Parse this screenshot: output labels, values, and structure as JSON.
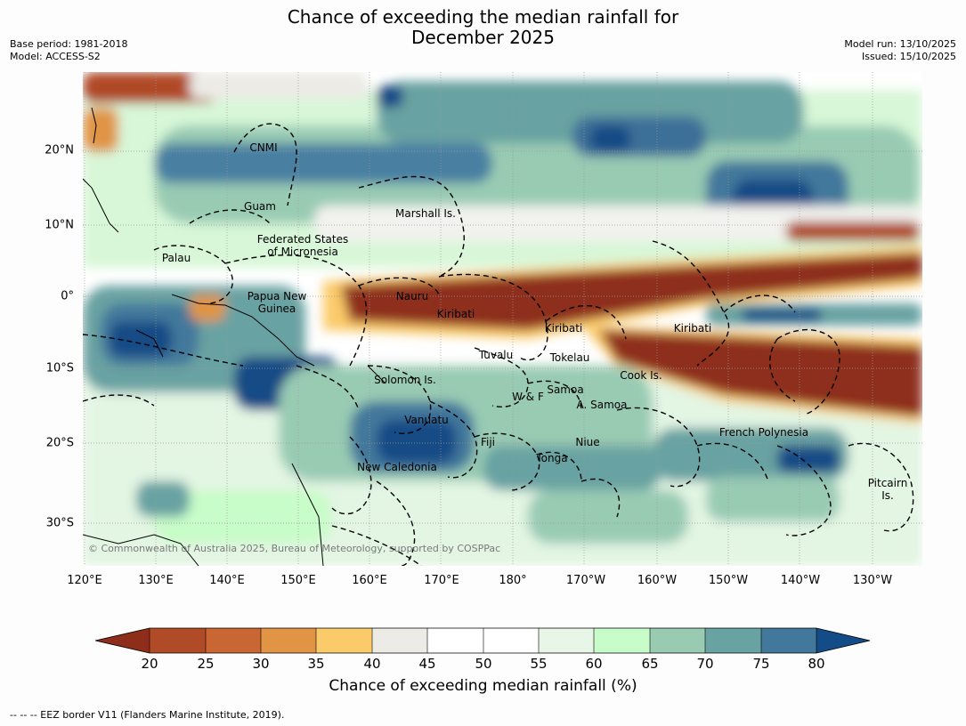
{
  "title_line1": "Chance of exceeding the median rainfall for",
  "title_line2": "December 2025",
  "meta_left": {
    "base_period": "Base period: 1981-2018",
    "model": "Model: ACCESS-S2"
  },
  "meta_right": {
    "model_run": "Model run: 13/10/2025",
    "issued": "Issued: 15/10/2025"
  },
  "lat_labels": [
    "20°N",
    "10°N",
    "0°",
    "10°S",
    "20°S",
    "30°S"
  ],
  "lon_labels": [
    "120°E",
    "130°E",
    "140°E",
    "150°E",
    "160°E",
    "170°E",
    "180°",
    "170°W",
    "160°W",
    "150°W",
    "140°W",
    "130°W"
  ],
  "regions": {
    "cnmi": "CNMI",
    "guam": "Guam",
    "marshall": "Marshall Is.",
    "fsm_1": "Federated States",
    "fsm_2": "of Micronesia",
    "palau": "Palau",
    "png_1": "Papua New",
    "png_2": "Guinea",
    "nauru": "Nauru",
    "kiribati_w": "Kiribati",
    "kiribati_c": "Kiribati",
    "kiribati_e": "Kiribati",
    "tuvalu": "Tuvalu",
    "tokelau": "Tokelau",
    "cook": "Cook Is.",
    "solomon": "Solomon Is.",
    "wf": "W & F",
    "samoa": "Samoa",
    "asamoa": "A. Samoa",
    "vanuatu": "Vanuatu",
    "fiji": "Fiji",
    "niue": "Niue",
    "tonga": "Tonga",
    "frpoly": "French Polynesia",
    "newcal": "New Caledonia",
    "pitcairn_1": "Pitcairn",
    "pitcairn_2": "Is."
  },
  "copyright": "© Commonwealth of Australia 2025, Bureau of Meteorology, supported by COSPPac",
  "colorbar": {
    "ticks": [
      "20",
      "25",
      "30",
      "35",
      "40",
      "45",
      "50",
      "55",
      "60",
      "65",
      "70",
      "75",
      "80"
    ],
    "colors": [
      "#8e2d1a",
      "#b04a27",
      "#c96634",
      "#e09444",
      "#fbcb6b",
      "#ecebe6",
      "#ffffff",
      "#ffffff",
      "#e7f6e7",
      "#c8fcc8",
      "#99cbb3",
      "#69a2a2",
      "#42789b",
      "#134c86"
    ],
    "label": "Chance of exceeding median rainfall (%)"
  },
  "footnote": "--  --  -- EEZ border V11 (Flanders Marine Institute, 2019)."
}
